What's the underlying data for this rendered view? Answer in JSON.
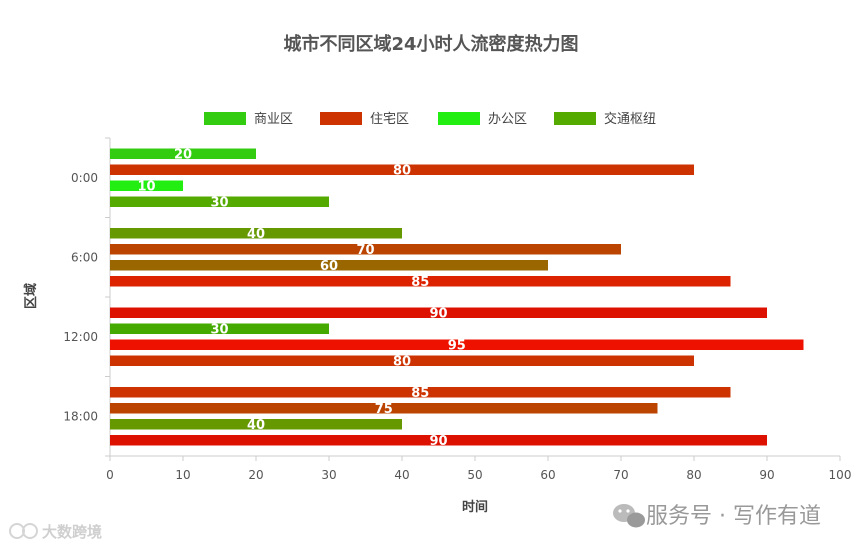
{
  "chart_data": {
    "type": "bar",
    "orientation": "horizontal",
    "title": "城市不同区域24小时人流密度热力图",
    "xlabel": "时间",
    "ylabel": "区域",
    "xlim": [
      0,
      100
    ],
    "xticks": [
      0,
      10,
      20,
      30,
      40,
      50,
      60,
      70,
      80,
      90,
      100
    ],
    "categories": [
      "0:00",
      "6:00",
      "12:00",
      "18:00"
    ],
    "legend_position": "top",
    "series": [
      {
        "name": "商业区",
        "color": "#33cc11",
        "values": [
          20,
          40,
          90,
          85
        ]
      },
      {
        "name": "住宅区",
        "color": "#cc3300",
        "values": [
          80,
          70,
          30,
          75
        ]
      },
      {
        "name": "办公区",
        "color": "#22ee11",
        "values": [
          10,
          60,
          95,
          40
        ]
      },
      {
        "name": "交通枢纽",
        "color": "#55aa00",
        "values": [
          30,
          85,
          80,
          90
        ]
      }
    ],
    "bar_colors": [
      [
        "#33cc11",
        "#cc3300",
        "#22ee11",
        "#55aa00"
      ],
      [
        "#669900",
        "#bb4400",
        "#996600",
        "#dd2200"
      ],
      [
        "#dd1100",
        "#44aa00",
        "#ee1100",
        "#cc3300"
      ],
      [
        "#cc3300",
        "#bb4400",
        "#669900",
        "#dd1100"
      ]
    ],
    "show_data_labels": true,
    "grid": false
  },
  "watermark": {
    "right": "服务号 · 写作有道",
    "left": "大数跨境",
    "icon": "wechat-icon"
  }
}
